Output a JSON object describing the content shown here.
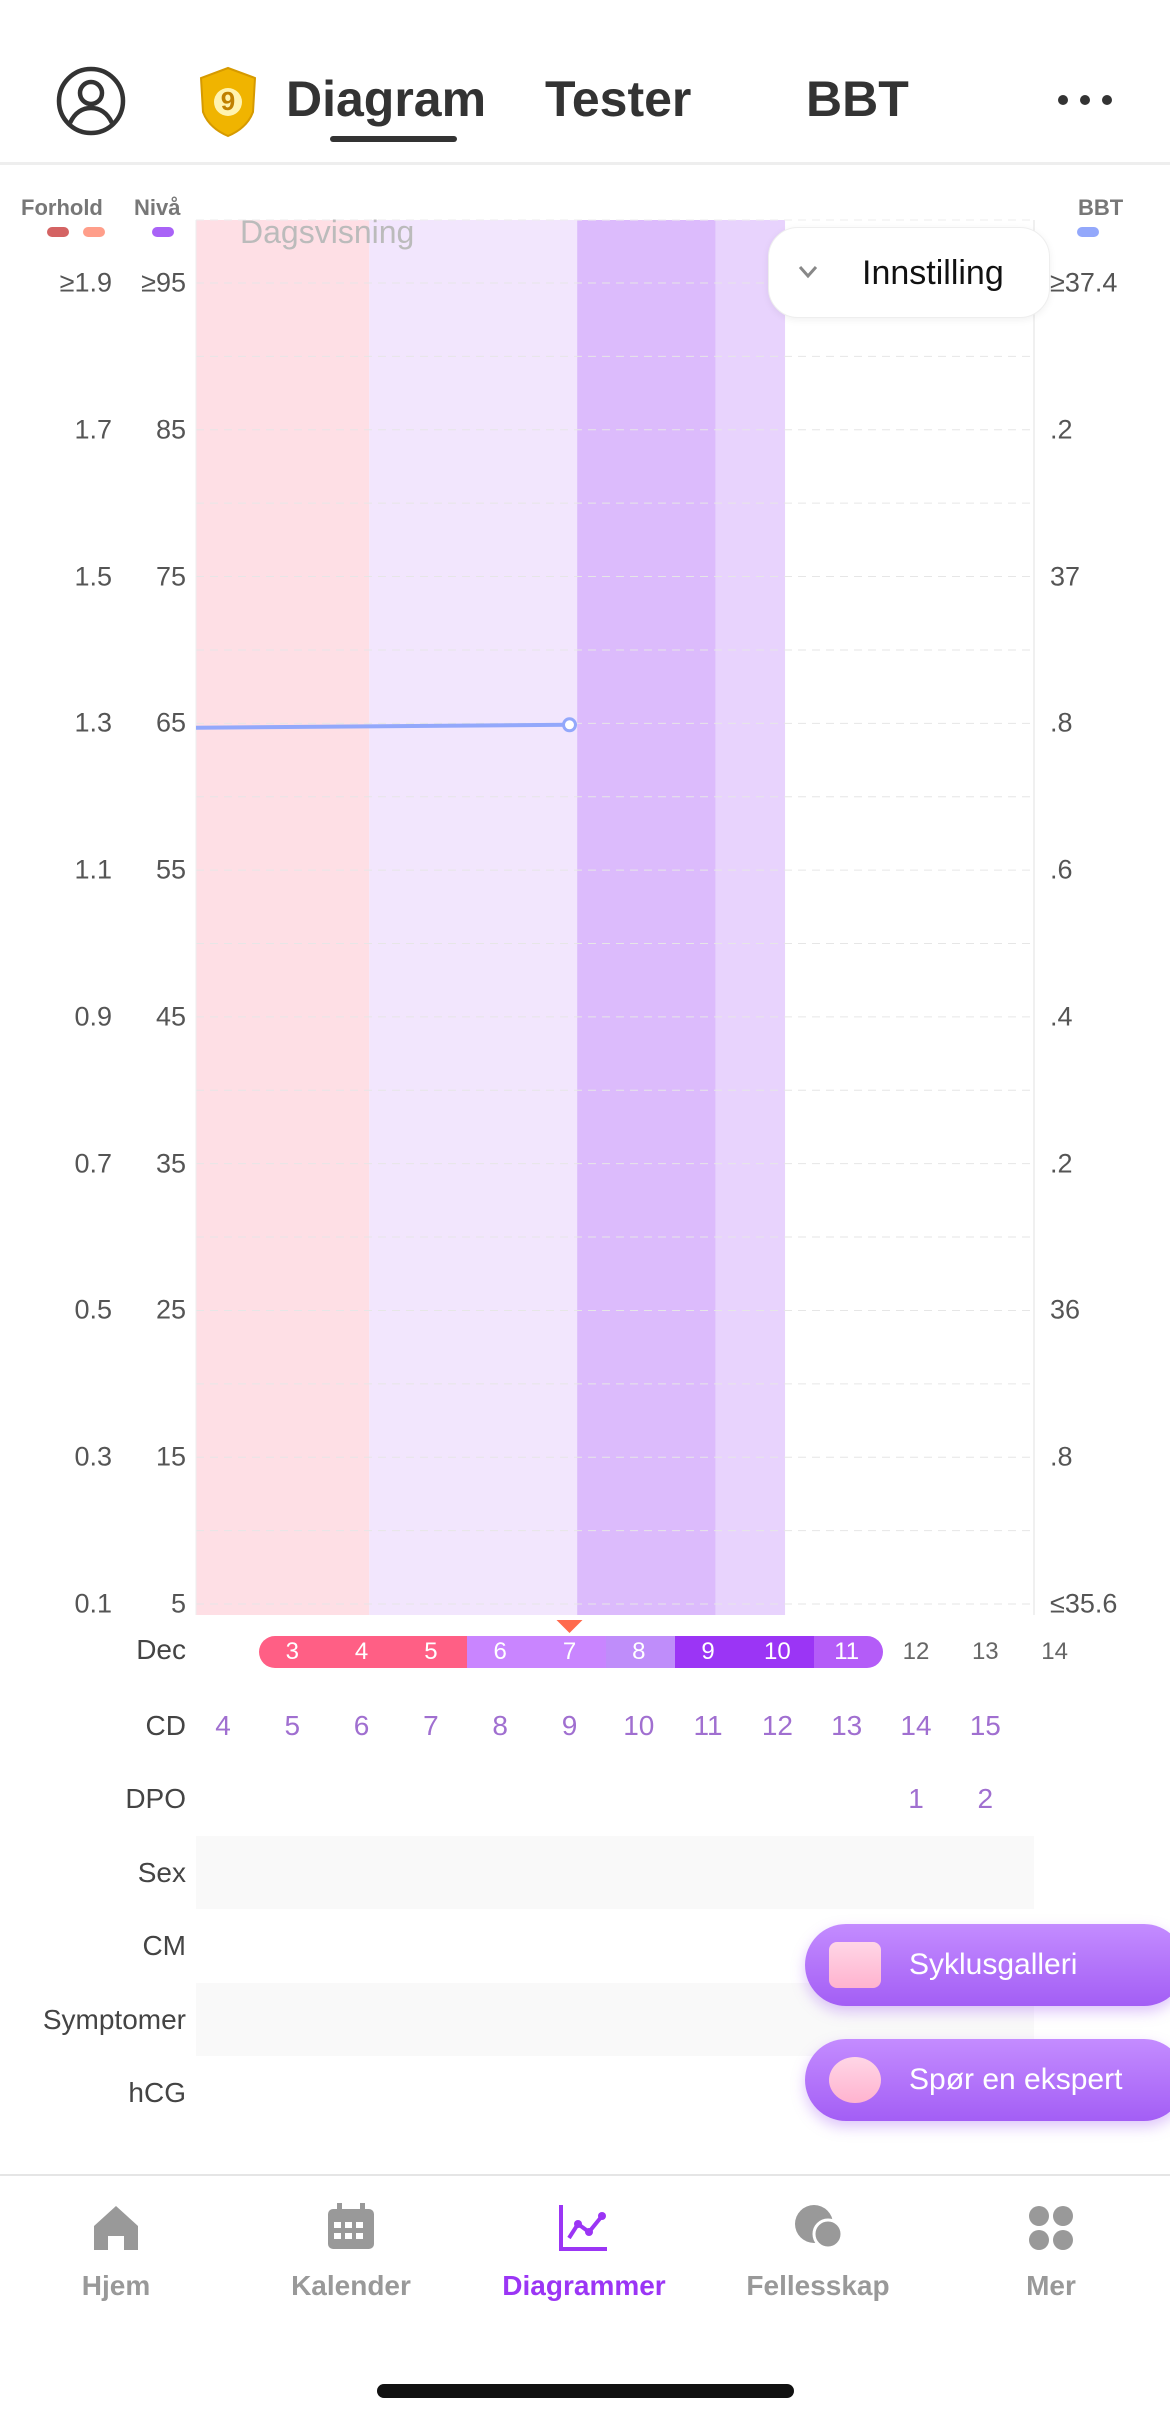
{
  "header": {
    "badge_number": "9",
    "tabs": [
      "Diagram",
      "Tester",
      "BBT"
    ],
    "active_tab": 0
  },
  "legend": {
    "ratio": "Forhold",
    "level": "Nivå",
    "bbt": "BBT",
    "colors": {
      "ratio1": "#d46363",
      "ratio2": "#ff9e8a",
      "level": "#a963f7",
      "bbt": "#93a8fb"
    }
  },
  "chart": {
    "view_label": "Dagsvisning",
    "settings_label": "Innstilling",
    "ratio_ticks": [
      "≥1.9",
      "1.7",
      "1.5",
      "1.3",
      "1.1",
      "0.9",
      "0.7",
      "0.5",
      "0.3",
      "0.1"
    ],
    "level_ticks": [
      "≥95",
      "85",
      "75",
      "65",
      "55",
      "45",
      "35",
      "25",
      "15",
      "5"
    ],
    "bbt_ticks": [
      "≥37.4",
      ".2",
      "37",
      ".8",
      ".6",
      ".4",
      ".2",
      "36",
      ".8",
      "≤35.6"
    ],
    "bands": [
      {
        "from": 0,
        "to": 2.5,
        "color": "#fedfe5"
      },
      {
        "from": 2.5,
        "to": 5.5,
        "color": "#f2e6fd"
      },
      {
        "from": 5.5,
        "to": 7.5,
        "color": "#dcbbfc"
      },
      {
        "from": 7.5,
        "to": 8.5,
        "color": "#e8d3fd"
      }
    ],
    "bbt_series": {
      "color": "#93a8fb",
      "points": [
        {
          "day_index": -0.4,
          "level": 64.7
        },
        {
          "day_index": 5,
          "level": 64.9
        }
      ]
    },
    "today_index": 5
  },
  "axis": {
    "month_label": "Dec",
    "dates": [
      "3",
      "4",
      "5",
      "6",
      "7",
      "8",
      "9",
      "10",
      "11",
      "12",
      "13",
      "14"
    ],
    "date_colors": [
      "#ff5f85",
      "#ff5f85",
      "#ff5f85",
      "#c985ff",
      "#c985ff",
      "#bf8dfa",
      "#9b35f5",
      "#9b35f5",
      "#b45cf8",
      null,
      null,
      null
    ],
    "cd_label": "CD",
    "cd": [
      "4",
      "5",
      "6",
      "7",
      "8",
      "9",
      "10",
      "11",
      "12",
      "13",
      "14",
      "15"
    ],
    "dpo_label": "DPO",
    "dpo": [
      "",
      "",
      "",
      "",
      "",
      "",
      "",
      "",
      "",
      "",
      "1",
      "2"
    ],
    "rows": [
      "Sex",
      "CM",
      "Symptomer",
      "hCG"
    ]
  },
  "fabs": {
    "gallery": "Syklusgalleri",
    "expert": "Spør en ekspert"
  },
  "tabbar": [
    {
      "label": "Hjem",
      "icon": "home-icon"
    },
    {
      "label": "Kalender",
      "icon": "calendar-icon"
    },
    {
      "label": "Diagrammer",
      "icon": "chart-icon"
    },
    {
      "label": "Fellesskap",
      "icon": "community-icon"
    },
    {
      "label": "Mer",
      "icon": "more-icon"
    }
  ],
  "tabbar_active": 2,
  "accent": "#9b35f5"
}
